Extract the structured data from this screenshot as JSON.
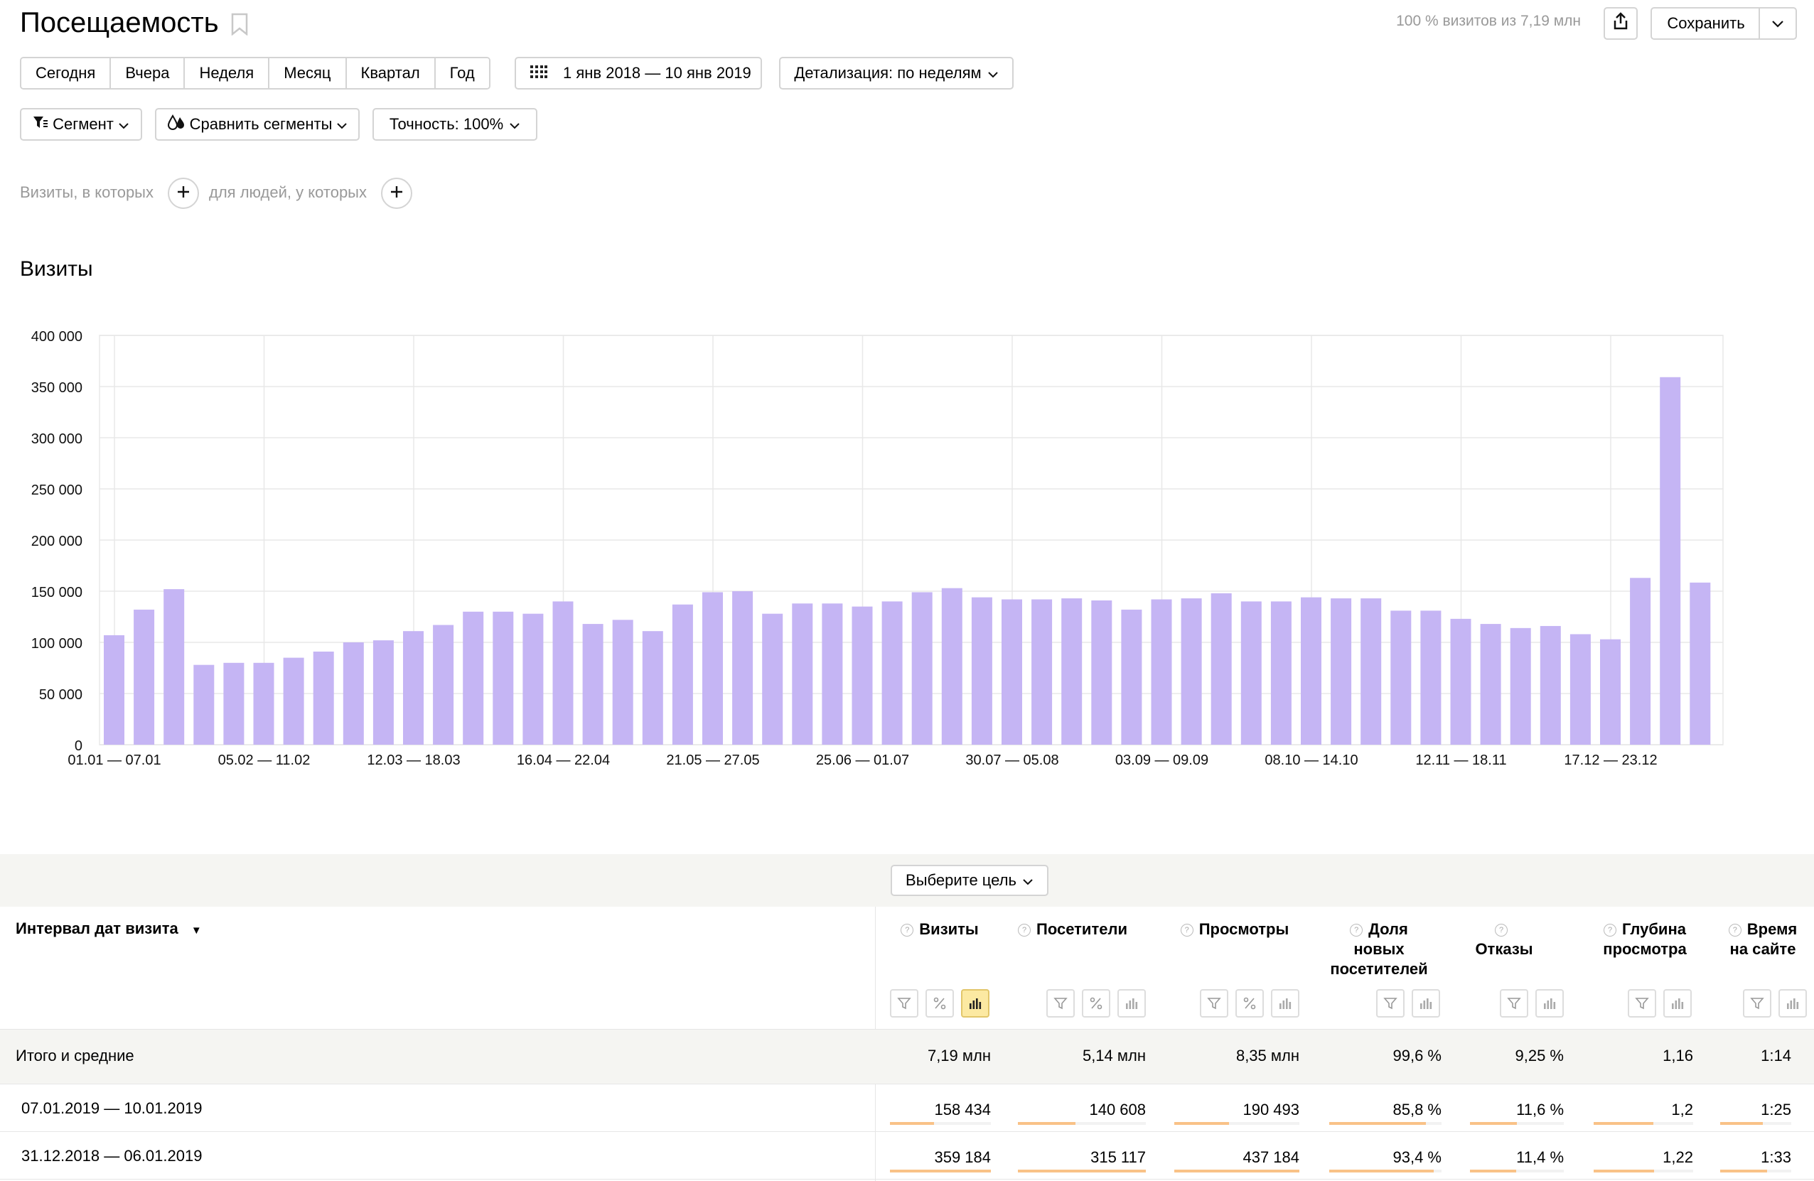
{
  "header": {
    "title": "Посещаемость",
    "visits_share": "100 % визитов из 7,19 млн",
    "save_label": "Сохранить"
  },
  "periods": [
    "Сегодня",
    "Вчера",
    "Неделя",
    "Месяц",
    "Квартал",
    "Год"
  ],
  "date_range": "1 янв 2018 — 10 янв 2019",
  "detail_label": "Детализация: по неделям",
  "segment_label": "Сегмент",
  "compare_label": "Сравнить сегменты",
  "accuracy_label": "Точность: 100%",
  "conditions": {
    "visits_where": "Визиты, в которых",
    "people_who": "для людей, у которых"
  },
  "chart_title": "Визиты",
  "chart_data": {
    "type": "bar",
    "title": "Визиты",
    "xlabel": "",
    "ylabel": "",
    "ylim": [
      0,
      400000
    ],
    "yticks": [
      "0",
      "50 000",
      "100 000",
      "150 000",
      "200 000",
      "250 000",
      "300 000",
      "350 000",
      "400 000"
    ],
    "xtick_labels": [
      "01.01 — 07.01",
      "05.02 — 11.02",
      "12.03 — 18.03",
      "16.04 — 22.04",
      "21.05 — 27.05",
      "25.06 — 01.07",
      "30.07 — 05.08",
      "03.09 — 09.09",
      "08.10 — 14.10",
      "12.11 — 18.11",
      "17.12 — 23.12"
    ],
    "grid": true,
    "colors": {
      "bar": "#c5b5f4",
      "grid": "#e8e8e8"
    },
    "values": [
      107000,
      132000,
      152000,
      78000,
      80000,
      80000,
      85000,
      91000,
      100000,
      102000,
      111000,
      117000,
      130000,
      130000,
      128000,
      140000,
      118000,
      122000,
      111000,
      137000,
      149000,
      150000,
      128000,
      138000,
      138000,
      135000,
      140000,
      149000,
      153000,
      144000,
      142000,
      142000,
      143000,
      141000,
      132000,
      142000,
      143000,
      148000,
      140000,
      140000,
      144000,
      143000,
      143000,
      131000,
      131000,
      123000,
      118000,
      114000,
      116000,
      108000,
      103000,
      163000,
      359184,
      158434
    ]
  },
  "table": {
    "goal_button": "Выберите цель",
    "dimension_header": "Интервал дат визита",
    "sort_marker": "▼",
    "metrics": [
      {
        "lines": [
          "Визиты"
        ]
      },
      {
        "lines": [
          "Посетители"
        ]
      },
      {
        "lines": [
          "Просмотры"
        ]
      },
      {
        "lines": [
          "Доля",
          "новых",
          "посетителей"
        ]
      },
      {
        "lines": [
          "Отказы"
        ]
      },
      {
        "lines": [
          "Глубина",
          "просмотра"
        ]
      },
      {
        "lines": [
          "Время",
          "на сайте"
        ]
      }
    ],
    "totals": {
      "label": "Итого и средние",
      "values": [
        "7,19 млн",
        "5,14 млн",
        "8,35 млн",
        "99,6 %",
        "9,25 %",
        "1,16",
        "1:14"
      ]
    },
    "rows": [
      {
        "label": "07.01.2019 — 10.01.2019",
        "values": [
          "158 434",
          "140 608",
          "190 493",
          "85,8 %",
          "11,6 %",
          "1,2",
          "1:25"
        ],
        "fractions": [
          0.44,
          0.45,
          0.44,
          0.86,
          0.5,
          0.6,
          0.6
        ]
      },
      {
        "label": "31.12.2018 — 06.01.2019",
        "values": [
          "359 184",
          "315 117",
          "437 184",
          "93,4 %",
          "11,4 %",
          "1,22",
          "1:33"
        ],
        "fractions": [
          1.0,
          1.0,
          1.0,
          0.93,
          0.49,
          0.61,
          0.66
        ]
      }
    ]
  }
}
